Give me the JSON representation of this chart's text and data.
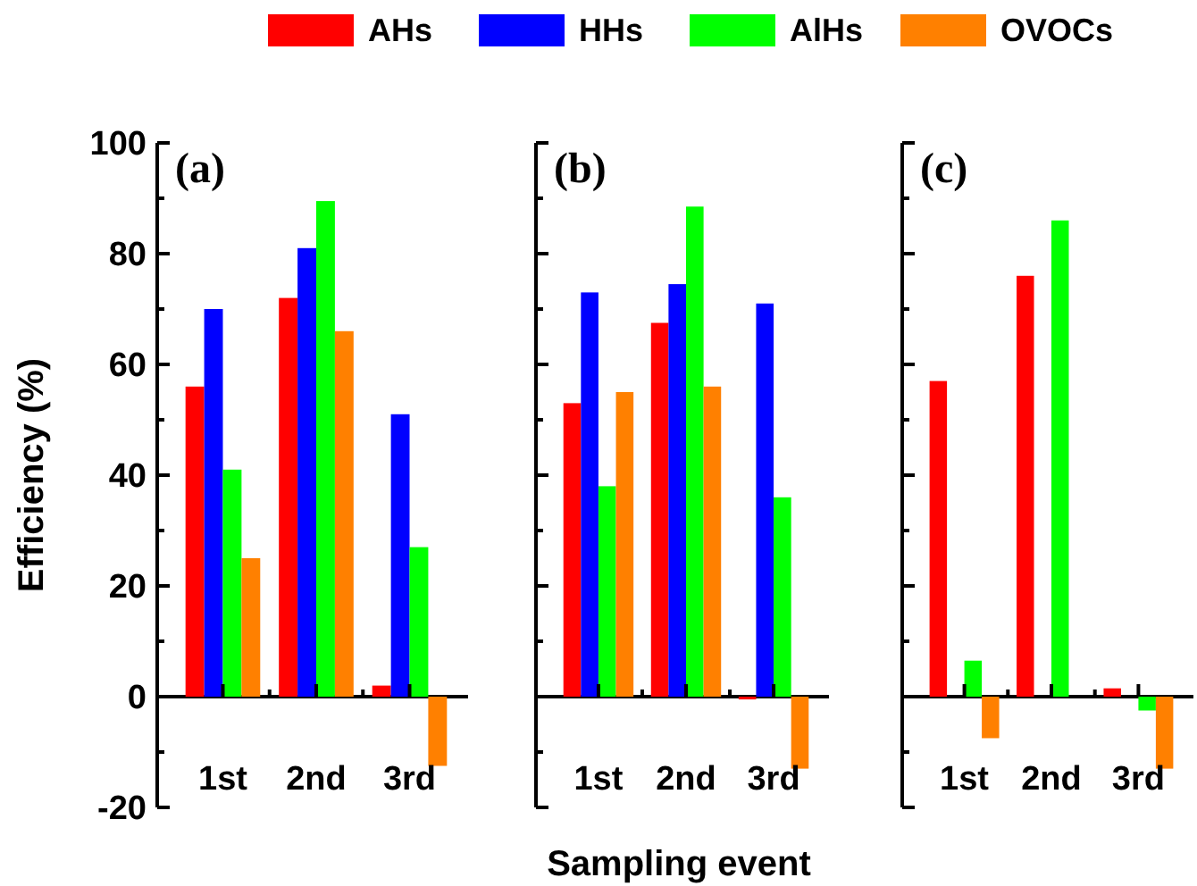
{
  "chart_data": [
    {
      "type": "bar",
      "title": "(a)",
      "ylabel": "Efficiency (%)",
      "categories": [
        "1st",
        "2nd",
        "3rd"
      ],
      "ylim": [
        -20,
        100
      ],
      "yticks": [
        -20,
        {
          "value": -10,
          "label": null
        },
        0,
        {
          "value": 10,
          "label": null
        },
        20,
        {
          "value": 30,
          "label": null
        },
        40,
        {
          "value": 50,
          "label": null
        },
        60,
        {
          "value": 70,
          "label": null
        },
        80,
        {
          "value": 90,
          "label": null
        },
        100
      ],
      "grid": false,
      "legend": "top",
      "series": [
        {
          "name": "AHs",
          "color": "#ff0000",
          "values": [
            56,
            72,
            2
          ]
        },
        {
          "name": "HHs",
          "color": "#0000ff",
          "values": [
            70,
            81,
            51
          ]
        },
        {
          "name": "AlHs",
          "color": "#00ff00",
          "values": [
            41,
            89.5,
            27
          ]
        },
        {
          "name": "OVOCs",
          "color": "#ff8000",
          "values": [
            25,
            66,
            -12.5
          ]
        }
      ]
    },
    {
      "type": "bar",
      "title": "(b)",
      "xlabel": "Sampling event",
      "categories": [
        "1st",
        "2nd",
        "3rd"
      ],
      "ylim": [
        -20,
        100
      ],
      "yticks": [
        -20,
        {
          "value": -10,
          "label": null
        },
        0,
        {
          "value": 10,
          "label": null
        },
        20,
        {
          "value": 30,
          "label": null
        },
        40,
        {
          "value": 50,
          "label": null
        },
        60,
        {
          "value": 70,
          "label": null
        },
        80,
        {
          "value": 90,
          "label": null
        },
        100
      ],
      "grid": false,
      "tick_labels": "x",
      "series": [
        {
          "color": "#ff0000",
          "values": [
            53,
            67.5,
            -0.5
          ]
        },
        {
          "color": "#0000ff",
          "values": [
            73,
            74.5,
            71
          ]
        },
        {
          "color": "#00ff00",
          "values": [
            38,
            88.5,
            36
          ]
        },
        {
          "color": "#ff8000",
          "values": [
            55,
            56,
            -13
          ]
        }
      ]
    },
    {
      "type": "bar",
      "title": "(c)",
      "categories": [
        "1st",
        "2nd",
        "3rd"
      ],
      "ylim": [
        -20,
        100
      ],
      "yticks": [
        -20,
        {
          "value": -10,
          "label": null
        },
        0,
        {
          "value": 10,
          "label": null
        },
        20,
        {
          "value": 30,
          "label": null
        },
        40,
        {
          "value": 50,
          "label": null
        },
        60,
        {
          "value": 70,
          "label": null
        },
        80,
        {
          "value": 90,
          "label": null
        },
        100
      ],
      "grid": false,
      "tick_labels": "x",
      "series": [
        {
          "color": "#ff0000",
          "values": [
            57,
            76,
            1.5
          ]
        },
        {
          "values": [
            null,
            null,
            null
          ]
        },
        {
          "color": "#00ff00",
          "values": [
            6.5,
            86,
            -2.5
          ]
        },
        {
          "color": "#ff8000",
          "values": [
            -7.5,
            null,
            -13
          ]
        }
      ]
    }
  ]
}
